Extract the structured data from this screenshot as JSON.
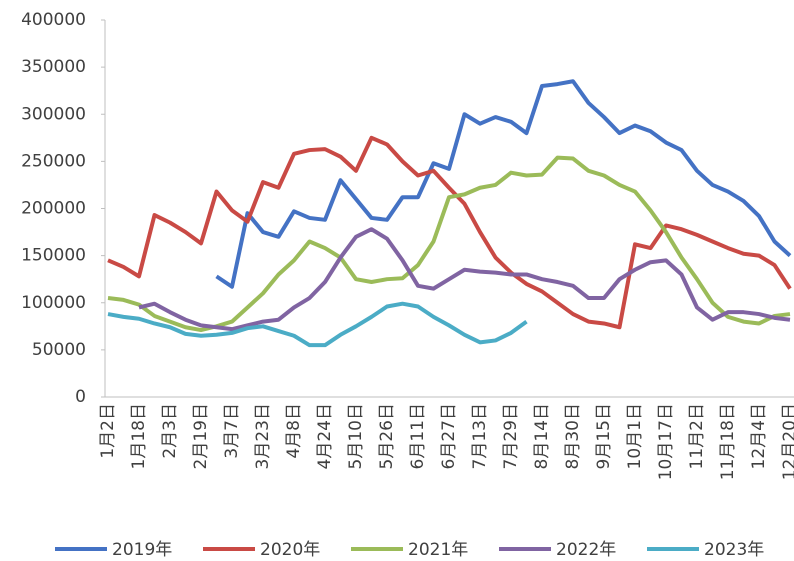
{
  "chart_data": {
    "type": "line",
    "categories": [
      "1月2日",
      null,
      "1月18日",
      null,
      "2月3日",
      null,
      "2月19日",
      null,
      "3月7日",
      null,
      "3月23日",
      null,
      "4月8日",
      null,
      "4月24日",
      null,
      "5月10日",
      null,
      "5月26日",
      null,
      "6月11日",
      null,
      "6月27日",
      null,
      "7月13日",
      null,
      "7月29日",
      null,
      "8月14日",
      null,
      "8月30日",
      null,
      "9月15日",
      null,
      "10月1日",
      null,
      "10月17日",
      null,
      "11月2日",
      null,
      "11月18日",
      null,
      "12月4日",
      null,
      "12月20日"
    ],
    "ylim": [
      0,
      400000
    ],
    "yticks": [
      0,
      50000,
      100000,
      150000,
      200000,
      250000,
      300000,
      350000,
      400000
    ],
    "series": [
      {
        "name": "2019年",
        "color": "#4472c4",
        "values": [
          null,
          null,
          null,
          null,
          null,
          null,
          null,
          128000,
          117000,
          195000,
          175000,
          170000,
          197000,
          190000,
          188000,
          230000,
          210000,
          190000,
          188000,
          212000,
          212000,
          248000,
          242000,
          300000,
          290000,
          297000,
          292000,
          280000,
          330000,
          332000,
          335000,
          312000,
          297000,
          280000,
          288000,
          282000,
          270000,
          262000,
          240000,
          225000,
          218000,
          208000,
          192000,
          165000,
          150000
        ]
      },
      {
        "name": "2020年",
        "color": "#c94a45",
        "values": [
          145000,
          138000,
          128000,
          193000,
          185000,
          175000,
          163000,
          218000,
          198000,
          186000,
          228000,
          222000,
          258000,
          262000,
          263000,
          255000,
          240000,
          275000,
          268000,
          250000,
          235000,
          240000,
          222000,
          205000,
          175000,
          148000,
          132000,
          120000,
          112000,
          100000,
          88000,
          80000,
          78000,
          74000,
          162000,
          158000,
          182000,
          178000,
          172000,
          165000,
          158000,
          152000,
          150000,
          140000,
          115000
        ]
      },
      {
        "name": "2021年",
        "color": "#9bbb59",
        "values": [
          105000,
          103000,
          98000,
          86000,
          80000,
          74000,
          71000,
          75000,
          80000,
          95000,
          110000,
          130000,
          145000,
          165000,
          158000,
          148000,
          125000,
          122000,
          125000,
          126000,
          140000,
          165000,
          212000,
          215000,
          222000,
          225000,
          238000,
          235000,
          236000,
          254000,
          253000,
          240000,
          235000,
          225000,
          218000,
          198000,
          175000,
          148000,
          125000,
          100000,
          85000,
          80000,
          78000,
          86000,
          88000
        ]
      },
      {
        "name": "2022年",
        "color": "#8064a2",
        "values": [
          null,
          null,
          95000,
          99000,
          90000,
          82000,
          76000,
          74000,
          72000,
          76000,
          80000,
          82000,
          95000,
          105000,
          122000,
          148000,
          170000,
          178000,
          168000,
          145000,
          118000,
          115000,
          125000,
          135000,
          133000,
          132000,
          130000,
          130000,
          125000,
          122000,
          118000,
          105000,
          105000,
          125000,
          135000,
          143000,
          145000,
          130000,
          95000,
          82000,
          90000,
          90000,
          88000,
          84000,
          82000
        ]
      },
      {
        "name": "2023年",
        "color": "#4bacc6",
        "values": [
          88000,
          85000,
          83000,
          78000,
          74000,
          67000,
          65000,
          66000,
          68000,
          73000,
          75000,
          70000,
          65000,
          55000,
          55000,
          66000,
          75000,
          85000,
          96000,
          99000,
          96000,
          85000,
          76000,
          66000,
          58000,
          60000,
          68000,
          80000,
          null,
          null,
          null,
          null,
          null,
          null,
          null,
          null,
          null,
          null,
          null,
          null,
          null,
          null,
          null,
          null,
          null
        ]
      }
    ]
  }
}
